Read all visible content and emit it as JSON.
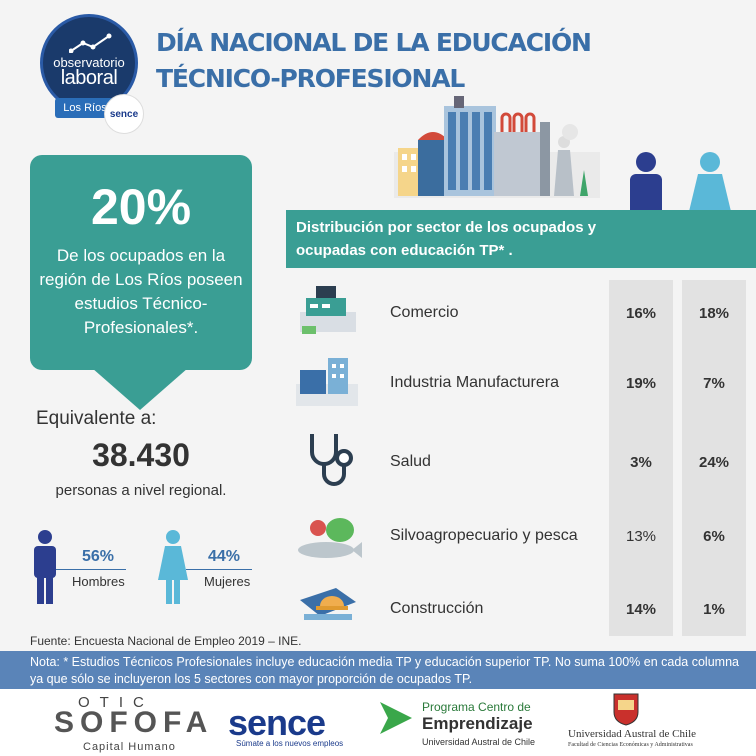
{
  "logo": {
    "line1": "observatorio",
    "line2": "laboral",
    "region": "Los Ríos",
    "partner": "sence"
  },
  "title": {
    "line1": "DÍA NACIONAL DE LA EDUCACIÓN",
    "line2": "TÉCNICO-PROFESIONAL"
  },
  "stat": {
    "percent": "20%",
    "description": "De los ocupados en la región de Los Ríos poseen estudios Técnico-Profesionales*."
  },
  "equivalent": {
    "label": "Equivalente a:",
    "value": "38.430",
    "description": "personas a nivel regional."
  },
  "gender": {
    "men": {
      "percent": "56%",
      "label": "Hombres"
    },
    "women": {
      "percent": "44%",
      "label": "Mujeres"
    }
  },
  "distribution": {
    "title": "Distribución por sector de los ocupados y ocupadas con educación TP* .",
    "sectors": [
      {
        "name": "Comercio",
        "men": "16%",
        "women": "18%",
        "icon": "cash-register-icon"
      },
      {
        "name": "Industria Manufacturera",
        "men": "19%",
        "women": "7%",
        "icon": "factory-machine-icon"
      },
      {
        "name": "Salud",
        "men": "3%",
        "women": "24%",
        "icon": "stethoscope-icon"
      },
      {
        "name": "Silvoagropecuario y pesca",
        "men": "13%",
        "women": "6%",
        "icon": "fish-vegetables-icon"
      },
      {
        "name": "Construcción",
        "men": "14%",
        "women": "1%",
        "icon": "blueprint-helmet-icon"
      }
    ]
  },
  "source": "Fuente: Encuesta Nacional de Empleo 2019 – INE.",
  "note": "Nota: * Estudios Técnicos Profesionales incluye educación media TP y educación superior TP. No suma 100% en cada columna ya que sólo se incluyeron los 5 sectores con mayor proporción de ocupados TP.",
  "footer": {
    "otic": "OTIC",
    "sofofa": "SOFOFA",
    "capital": "Capital Humano",
    "sence": "sence",
    "sence_tagline": "Súmate a los nuevos empleos",
    "pce_line1": "Programa Centro de",
    "pce_line2": "Emprendizaje",
    "pce_line3": "Universidad Austral de Chile",
    "uach_line1": "Universidad Austral de Chile",
    "uach_line2": "Facultad de Ciencias Económicas y Administrativas"
  },
  "colors": {
    "teal": "#3a9e94",
    "navy": "#2c3e8f",
    "lightblue": "#5ab8d8",
    "title_blue": "#3a6fa8",
    "note_band": "#5a84b8"
  }
}
